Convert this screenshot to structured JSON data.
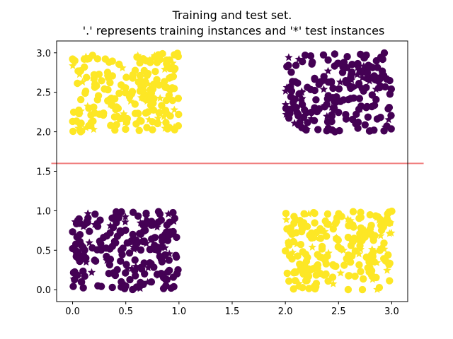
{
  "chart_data": {
    "type": "scatter",
    "title": "Training and test set.",
    "subtitle": "'.' represents training instances and '*' test instances",
    "xlabel": "",
    "ylabel": "",
    "xlim": [
      -0.15,
      3.15
    ],
    "ylim": [
      -0.15,
      3.15
    ],
    "x_ticks": [
      0.0,
      0.5,
      1.0,
      1.5,
      2.0,
      2.5,
      3.0
    ],
    "x_tick_labels": [
      "0.0",
      "0.5",
      "1.0",
      "1.5",
      "2.0",
      "2.5",
      "3.0"
    ],
    "y_ticks": [
      0.0,
      0.5,
      1.0,
      1.5,
      2.0,
      2.5,
      3.0
    ],
    "y_tick_labels": [
      "0.0",
      "0.5",
      "1.0",
      "1.5",
      "2.0",
      "2.5",
      "3.0"
    ],
    "grid": false,
    "colors": {
      "class_0": "#440154",
      "class_1": "#fde725",
      "line": "#f08080"
    },
    "clusters": [
      {
        "name": "class-1-top-left",
        "class": 1,
        "x_range": [
          0,
          1
        ],
        "y_range": [
          2,
          3
        ]
      },
      {
        "name": "class-0-top-right",
        "class": 0,
        "x_range": [
          2,
          3
        ],
        "y_range": [
          2,
          3
        ]
      },
      {
        "name": "class-0-bottom-left",
        "class": 0,
        "x_range": [
          0,
          1
        ],
        "y_range": [
          0,
          1
        ]
      },
      {
        "name": "class-1-bottom-right",
        "class": 1,
        "x_range": [
          2,
          3
        ],
        "y_range": [
          0,
          1
        ]
      }
    ],
    "points_per_cluster": {
      "train": 180,
      "test": 35
    },
    "markers": {
      "train": "circle",
      "test": "star"
    },
    "decision_line": {
      "y": 1.6,
      "x_range": [
        -0.2,
        3.3
      ]
    }
  }
}
